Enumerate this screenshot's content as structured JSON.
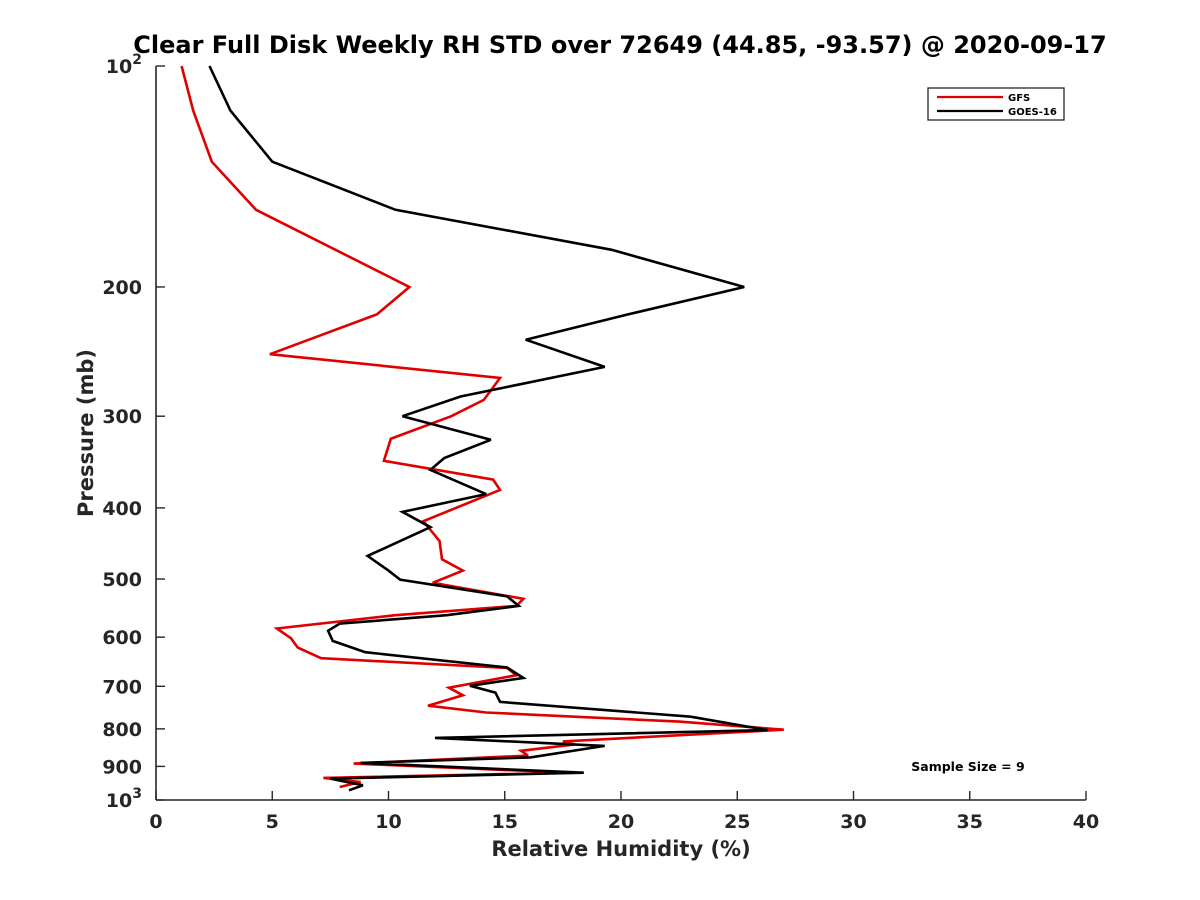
{
  "chart_data": {
    "type": "line",
    "title": "Clear Full Disk Weekly RH STD over 72649 (44.85, -93.57) @ 2020-09-17",
    "xlabel": "Relative Humidity (%)",
    "ylabel": "Pressure (mb)",
    "xlim": [
      0,
      40
    ],
    "ylim": [
      100,
      1000
    ],
    "y_scale": "log",
    "y_reversed": true,
    "x_ticks": [
      "0",
      "5",
      "10",
      "15",
      "20",
      "25",
      "30",
      "35",
      "40"
    ],
    "x_tick_values": [
      0,
      5,
      10,
      15,
      20,
      25,
      30,
      35,
      40
    ],
    "y_ticks": [
      {
        "value": 100,
        "base": "10",
        "exp": "2"
      },
      {
        "value": 200,
        "label": "200"
      },
      {
        "value": 300,
        "label": "300"
      },
      {
        "value": 400,
        "label": "400"
      },
      {
        "value": 500,
        "label": "500"
      },
      {
        "value": 600,
        "label": "600"
      },
      {
        "value": 700,
        "label": "700"
      },
      {
        "value": 800,
        "label": "800"
      },
      {
        "value": 900,
        "label": "900"
      },
      {
        "value": 1000,
        "base": "10",
        "exp": "3"
      }
    ],
    "legend_position": "top-right",
    "annotation": "Sample Size = 9",
    "series": [
      {
        "name": "GFS",
        "color": "#e00000",
        "points": [
          [
            1.1,
            100
          ],
          [
            1.6,
            115
          ],
          [
            2.4,
            135
          ],
          [
            4.3,
            157
          ],
          [
            10.9,
            200
          ],
          [
            9.5,
            218
          ],
          [
            4.9,
            247
          ],
          [
            14.8,
            266
          ],
          [
            14.1,
            285
          ],
          [
            12.7,
            300
          ],
          [
            10.1,
            322
          ],
          [
            9.8,
            345
          ],
          [
            14.5,
            366
          ],
          [
            14.8,
            378
          ],
          [
            11.5,
            417
          ],
          [
            12.2,
            444
          ],
          [
            12.3,
            470
          ],
          [
            13.2,
            487
          ],
          [
            11.9,
            506
          ],
          [
            15.8,
            532
          ],
          [
            15.5,
            544
          ],
          [
            10.3,
            560
          ],
          [
            5.2,
            584
          ],
          [
            5.8,
            602
          ],
          [
            6.1,
            620
          ],
          [
            7.1,
            641
          ],
          [
            15.1,
            661
          ],
          [
            15.5,
            676
          ],
          [
            12.6,
            703
          ],
          [
            13.2,
            720
          ],
          [
            11.7,
            744
          ],
          [
            14.2,
            760
          ],
          [
            22.5,
            782
          ],
          [
            27.0,
            802
          ],
          [
            17.5,
            832
          ],
          [
            18.0,
            840
          ],
          [
            15.7,
            857
          ],
          [
            16.0,
            870
          ],
          [
            8.5,
            892
          ],
          [
            17.8,
            918
          ],
          [
            7.2,
            933
          ],
          [
            8.8,
            945
          ],
          [
            7.9,
            960
          ]
        ]
      },
      {
        "name": "GOES-16",
        "color": "#000000",
        "points": [
          [
            2.3,
            100
          ],
          [
            3.2,
            115
          ],
          [
            5.0,
            135
          ],
          [
            10.3,
            157
          ],
          [
            19.6,
            178
          ],
          [
            25.3,
            200
          ],
          [
            20.3,
            218
          ],
          [
            15.9,
            236
          ],
          [
            19.3,
            257
          ],
          [
            13.1,
            282
          ],
          [
            10.6,
            300
          ],
          [
            14.4,
            323
          ],
          [
            12.4,
            342
          ],
          [
            11.8,
            355
          ],
          [
            14.2,
            383
          ],
          [
            10.6,
            405
          ],
          [
            11.8,
            425
          ],
          [
            9.1,
            465
          ],
          [
            10.0,
            487
          ],
          [
            10.5,
            501
          ],
          [
            15.1,
            528
          ],
          [
            15.6,
            544
          ],
          [
            12.5,
            560
          ],
          [
            7.9,
            575
          ],
          [
            7.4,
            588
          ],
          [
            7.6,
            607
          ],
          [
            9.0,
            629
          ],
          [
            15.1,
            660
          ],
          [
            15.8,
            682
          ],
          [
            13.5,
            699
          ],
          [
            14.6,
            714
          ],
          [
            14.8,
            735
          ],
          [
            23.0,
            770
          ],
          [
            26.3,
            803
          ],
          [
            12.0,
            823
          ],
          [
            19.3,
            844
          ],
          [
            16.1,
            875
          ],
          [
            8.8,
            890
          ],
          [
            18.4,
            918
          ],
          [
            7.5,
            935
          ],
          [
            8.9,
            955
          ],
          [
            8.3,
            970
          ]
        ]
      }
    ]
  }
}
